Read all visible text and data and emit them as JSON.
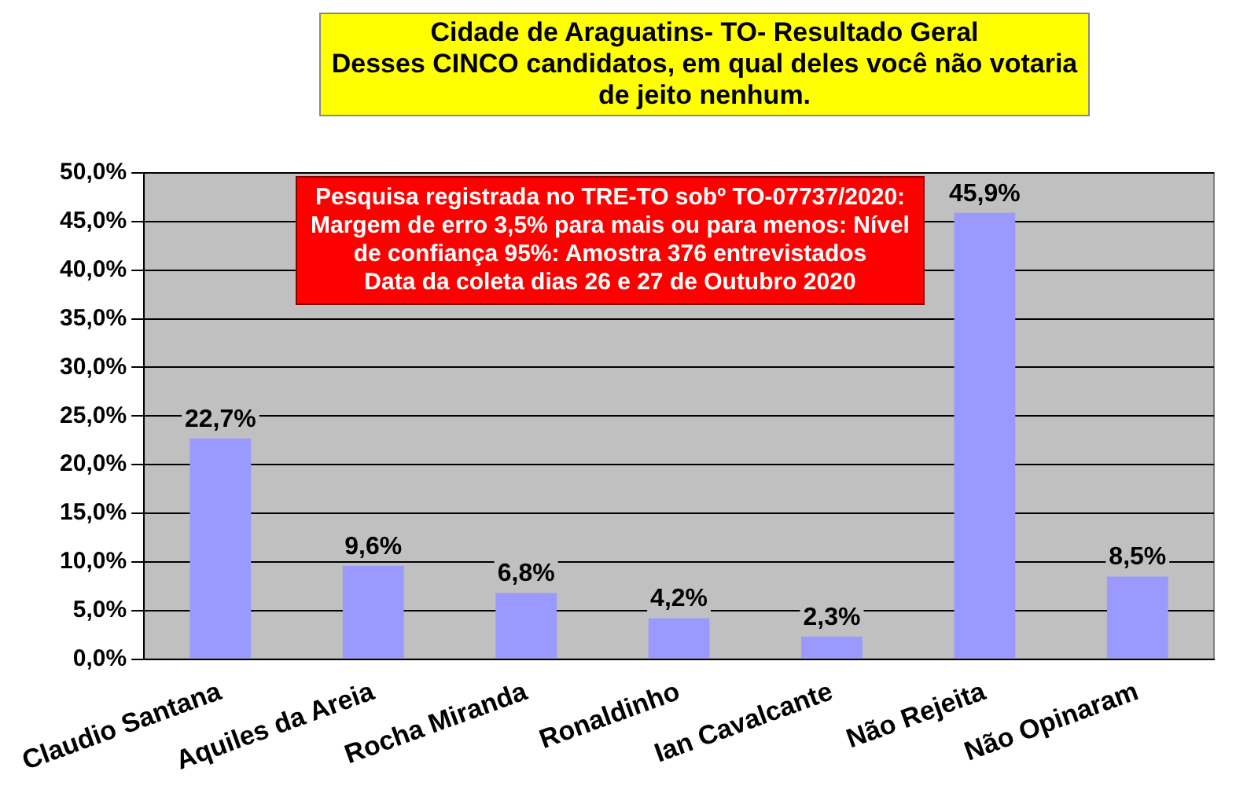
{
  "chart_data": {
    "type": "bar",
    "title": "Cidade de Araguatins- TO- Resultado Geral",
    "subtitle": "Desses CINCO candidatos, em qual deles você não votaria de jeito nenhum.",
    "categories": [
      "Claudio Santana",
      "Aquiles da Areia",
      "Rocha Miranda",
      "Ronaldinho",
      "Ian Cavalcante",
      "Não Rejeita",
      "Não Opinaram"
    ],
    "values": [
      22.7,
      9.6,
      6.8,
      4.2,
      2.3,
      45.9,
      8.5
    ],
    "value_labels": [
      "22,7%",
      "9,6%",
      "6,8%",
      "4,2%",
      "2,3%",
      "45,9%",
      "8,5%"
    ],
    "color": "#9999ff",
    "ylim": [
      0,
      50
    ],
    "yticks": [
      {
        "value": 0,
        "label": "0,0%"
      },
      {
        "value": 5,
        "label": "5,0%"
      },
      {
        "value": 10,
        "label": "10,0%"
      },
      {
        "value": 15,
        "label": "15,0%"
      },
      {
        "value": 20,
        "label": "20,0%"
      },
      {
        "value": 25,
        "label": "25,0%"
      },
      {
        "value": 30,
        "label": "30,0%"
      },
      {
        "value": 35,
        "label": "35,0%"
      },
      {
        "value": 40,
        "label": "40,0%"
      },
      {
        "value": 45,
        "label": "45,0%"
      },
      {
        "value": 50,
        "label": "50,0%"
      }
    ],
    "grid": "y",
    "annotations": [
      "Pesquisa registrada no TRE-TO sobº TO-07737/2020: Margem de erro 3,5% para mais ou para menos: Nível de confiança 95%: Amostra 376 entrevistados",
      "Data da coleta dias 26 e 27  de Outubro 2020"
    ]
  }
}
